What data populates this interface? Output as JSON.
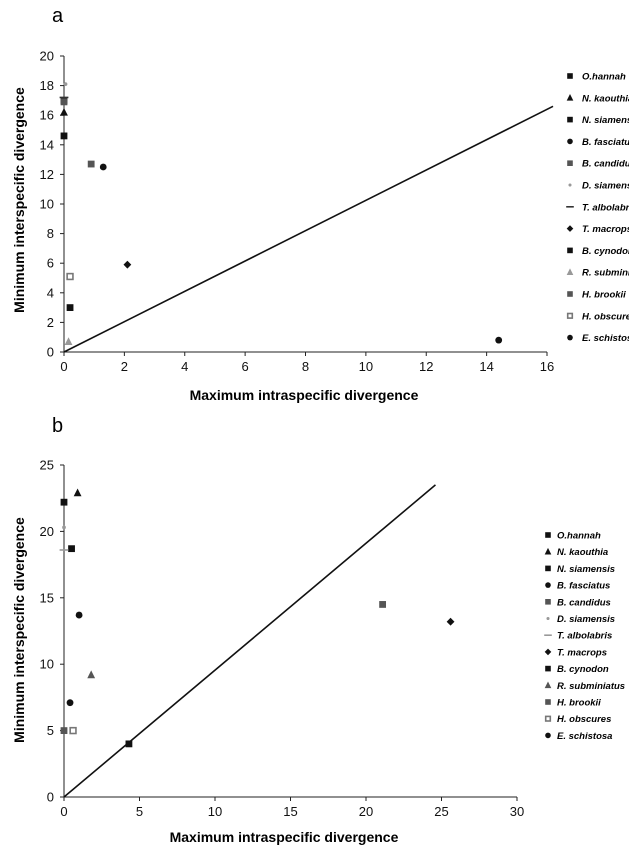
{
  "chart_data": [
    {
      "panel": "a",
      "type": "scatter",
      "xlabel": "Maximum intraspecific divergence",
      "ylabel": "Minimum interspecific divergence",
      "xlim": [
        0,
        16
      ],
      "ylim": [
        0,
        20
      ],
      "xticks": [
        "0",
        "2",
        "4",
        "6",
        "8",
        "10",
        "12",
        "14",
        "16"
      ],
      "yticks": [
        "0",
        "2",
        "4",
        "6",
        "8",
        "10",
        "12",
        "14",
        "16",
        "18",
        "20"
      ],
      "reference_line": {
        "x": [
          0,
          16.2
        ],
        "y": [
          0,
          16.6
        ]
      },
      "legend_position": "right",
      "series": [
        {
          "name": "O.hannah",
          "marker": "square",
          "color": "#111111",
          "x": 0.0,
          "y": 17.0
        },
        {
          "name": "N. kaouthia",
          "marker": "triangle",
          "color": "#111111",
          "x": 0.0,
          "y": 16.2
        },
        {
          "name": "N. siamensis",
          "marker": "square",
          "color": "#111111",
          "x": 0.0,
          "y": 14.6
        },
        {
          "name": "B. fasciatus",
          "marker": "circle",
          "color": "#111111",
          "x": 1.3,
          "y": 12.5
        },
        {
          "name": "B. candidus",
          "marker": "square",
          "color": "#555555",
          "x": 0.9,
          "y": 12.7
        },
        {
          "name": "D. siamensis",
          "marker": "dot",
          "color": "#999999",
          "x": 0.05,
          "y": 18.1
        },
        {
          "name": "T. albolabris",
          "marker": "dash",
          "color": "#333333",
          "x": 0.0,
          "y": 17.2
        },
        {
          "name": "T. macrops",
          "marker": "diamond",
          "color": "#111111",
          "x": 2.1,
          "y": 5.9
        },
        {
          "name": "B. cynodon",
          "marker": "square",
          "color": "#111111",
          "x": 0.2,
          "y": 3.0
        },
        {
          "name": "R. subminiatus",
          "marker": "triangle",
          "color": "#999999",
          "x": 0.15,
          "y": 0.7
        },
        {
          "name": "H. brookii",
          "marker": "square",
          "color": "#555555",
          "x": 0.0,
          "y": 16.9
        },
        {
          "name": "H. obscures",
          "marker": "square-open",
          "color": "#777777",
          "x": 0.2,
          "y": 5.1
        },
        {
          "name": "E. schistosa",
          "marker": "circle",
          "color": "#111111",
          "x": 14.4,
          "y": 0.8
        }
      ]
    },
    {
      "panel": "b",
      "type": "scatter",
      "xlabel": "Maximum intraspecific divergence",
      "ylabel": "Minimum interspecific divergence",
      "xlim": [
        0,
        30
      ],
      "ylim": [
        0,
        25
      ],
      "xticks": [
        "0",
        "5",
        "10",
        "15",
        "20",
        "25",
        "30"
      ],
      "yticks": [
        "0",
        "5",
        "10",
        "15",
        "20",
        "25"
      ],
      "reference_line": {
        "x": [
          0,
          24.6
        ],
        "y": [
          0,
          23.5
        ]
      },
      "legend_position": "right",
      "series": [
        {
          "name": "O.hannah",
          "marker": "square",
          "color": "#111111",
          "x": 0.0,
          "y": 22.2
        },
        {
          "name": "N. kaouthia",
          "marker": "triangle",
          "color": "#111111",
          "x": 0.9,
          "y": 22.9
        },
        {
          "name": "N. siamensis",
          "marker": "square",
          "color": "#111111",
          "x": 0.5,
          "y": 18.7
        },
        {
          "name": "B. fasciatus",
          "marker": "circle",
          "color": "#111111",
          "x": 1.0,
          "y": 13.7
        },
        {
          "name": "B. candidus",
          "marker": "square",
          "color": "#555555",
          "x": 21.1,
          "y": 14.5
        },
        {
          "name": "D. siamensis",
          "marker": "dot",
          "color": "#999999",
          "x": 0.0,
          "y": 20.3
        },
        {
          "name": "T. albolabris",
          "marker": "dash",
          "color": "#999999",
          "x": 0.0,
          "y": 18.6
        },
        {
          "name": "T. macrops",
          "marker": "diamond",
          "color": "#111111",
          "x": 25.6,
          "y": 13.2
        },
        {
          "name": "B. cynodon",
          "marker": "square",
          "color": "#111111",
          "x": 4.3,
          "y": 4.0
        },
        {
          "name": "R. subminiatus",
          "marker": "triangle",
          "color": "#555555",
          "x": 1.8,
          "y": 9.2
        },
        {
          "name": "H. brookii",
          "marker": "square",
          "color": "#555555",
          "x": 0.0,
          "y": 5.0
        },
        {
          "name": "H. obscures",
          "marker": "square-open",
          "color": "#777777",
          "x": 0.6,
          "y": 5.0
        },
        {
          "name": "E. schistosa",
          "marker": "circle",
          "color": "#111111",
          "x": 0.4,
          "y": 7.1
        }
      ]
    }
  ]
}
